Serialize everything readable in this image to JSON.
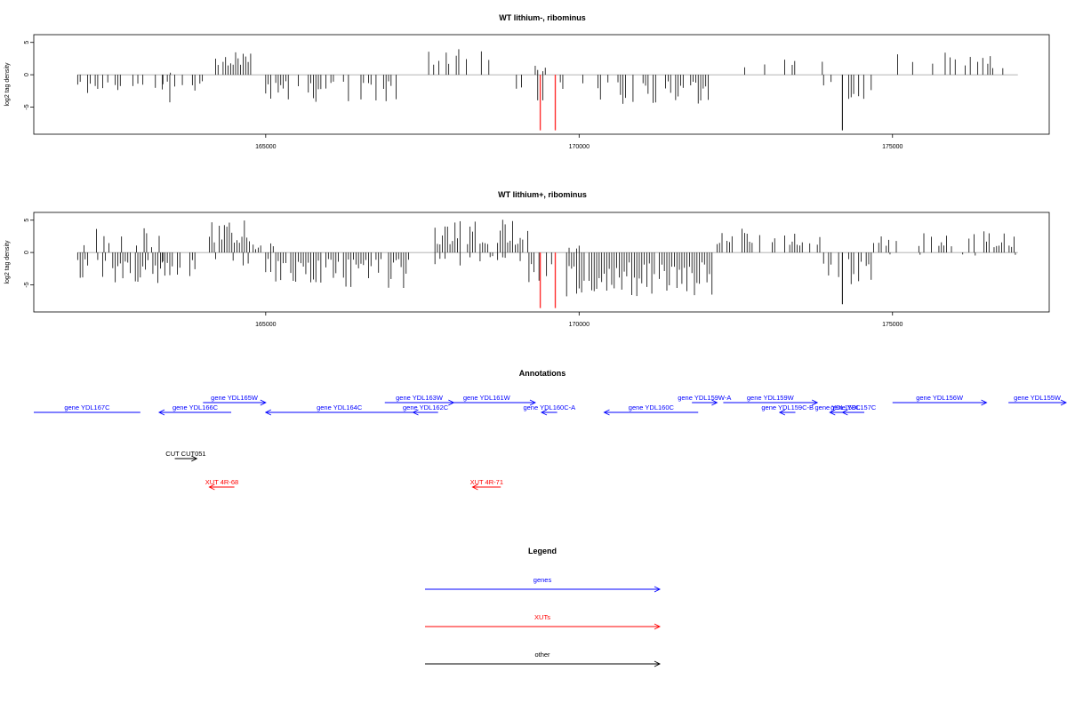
{
  "chart_data": [
    {
      "type": "bar",
      "title": "WT lithium-, ribominus",
      "xlabel": "",
      "ylabel": "log2 tag density",
      "xlim": [
        161300,
        177500
      ],
      "ylim": [
        -9.2,
        6.2
      ],
      "xticks": [
        165000,
        170000,
        175000
      ],
      "yticks": [
        5,
        0,
        -5
      ],
      "grid": false,
      "baseline_extent": [
        162000,
        177000
      ],
      "highlight_color": "#ff3030",
      "bar_color": "#000000",
      "highlights": [
        {
          "x": 169380,
          "y": -8.6
        },
        {
          "x": 169620,
          "y": -8.6
        }
      ],
      "segments": [
        {
          "start": 162000,
          "end": 163400,
          "sign": -1,
          "vmin": 1.0,
          "vmax": 3.8,
          "density": 0.55,
          "seed": 11
        },
        {
          "start": 163400,
          "end": 163500,
          "sign": 1,
          "vmin": 0.3,
          "vmax": 0.6,
          "density": 0.1,
          "seed": 12
        },
        {
          "start": 163350,
          "end": 164000,
          "sign": -1,
          "vmin": 1.0,
          "vmax": 4.5,
          "density": 0.55,
          "seed": 13
        },
        {
          "start": 164200,
          "end": 164800,
          "sign": 1,
          "vmin": 1.2,
          "vmax": 4.0,
          "density": 0.55,
          "seed": 14
        },
        {
          "start": 165000,
          "end": 167100,
          "sign": -1,
          "vmin": 1.0,
          "vmax": 4.4,
          "density": 0.55,
          "seed": 15
        },
        {
          "start": 167600,
          "end": 169000,
          "sign": 1,
          "vmin": 1.5,
          "vmax": 4.6,
          "density": 0.3,
          "seed": 16
        },
        {
          "start": 169000,
          "end": 169200,
          "sign": -1,
          "vmin": 1.0,
          "vmax": 2.5,
          "density": 0.3,
          "seed": 17
        },
        {
          "start": 169300,
          "end": 169500,
          "sign": 1,
          "vmin": 0.5,
          "vmax": 1.5,
          "density": 0.3,
          "seed": 18
        },
        {
          "start": 169300,
          "end": 169500,
          "sign": -1,
          "vmin": 2.0,
          "vmax": 4.5,
          "density": 0.2,
          "seed": 19
        },
        {
          "start": 169700,
          "end": 172100,
          "sign": -1,
          "vmin": 1.0,
          "vmax": 4.8,
          "density": 0.55,
          "seed": 20
        },
        {
          "start": 172200,
          "end": 173900,
          "sign": 1,
          "vmin": 1.0,
          "vmax": 3.2,
          "density": 0.12,
          "seed": 21
        },
        {
          "start": 173900,
          "end": 174700,
          "sign": -1,
          "vmin": 1.0,
          "vmax": 4.5,
          "density": 0.45,
          "seed": 22
        },
        {
          "start": 174600,
          "end": 177000,
          "sign": 1,
          "vmin": 1.0,
          "vmax": 4.0,
          "density": 0.15,
          "seed": 23
        }
      ],
      "spikes": [
        {
          "x": 174200,
          "y": -8.6
        }
      ]
    },
    {
      "type": "bar",
      "title": "WT lithium+, ribominus",
      "xlabel": "",
      "ylabel": "log2 tag density",
      "xlim": [
        161300,
        177500
      ],
      "ylim": [
        -9.2,
        6.2
      ],
      "xticks": [
        165000,
        170000,
        175000
      ],
      "yticks": [
        5,
        0,
        -5
      ],
      "grid": false,
      "baseline_extent": [
        162000,
        177000
      ],
      "highlight_color": "#ff3030",
      "bar_color": "#000000",
      "highlights": [
        {
          "x": 169380,
          "y": -8.6
        },
        {
          "x": 169620,
          "y": -8.6
        }
      ],
      "segments": [
        {
          "start": 162000,
          "end": 163400,
          "sign": -1,
          "vmin": 1.0,
          "vmax": 4.8,
          "density": 0.75,
          "seed": 31
        },
        {
          "start": 162100,
          "end": 163400,
          "sign": 1,
          "vmin": 0.8,
          "vmax": 3.8,
          "density": 0.35,
          "seed": 32
        },
        {
          "start": 163350,
          "end": 164000,
          "sign": -1,
          "vmin": 1.0,
          "vmax": 4.0,
          "density": 0.75,
          "seed": 33
        },
        {
          "start": 164100,
          "end": 164800,
          "sign": 1,
          "vmin": 1.5,
          "vmax": 5.0,
          "density": 0.9,
          "seed": 34
        },
        {
          "start": 164200,
          "end": 164800,
          "sign": -1,
          "vmin": 0.5,
          "vmax": 2.0,
          "density": 0.35,
          "seed": 35
        },
        {
          "start": 165000,
          "end": 167300,
          "sign": -1,
          "vmin": 1.0,
          "vmax": 5.5,
          "density": 0.8,
          "seed": 36
        },
        {
          "start": 164800,
          "end": 165200,
          "sign": 1,
          "vmin": 0.5,
          "vmax": 1.8,
          "density": 0.3,
          "seed": 37
        },
        {
          "start": 167700,
          "end": 169200,
          "sign": 1,
          "vmin": 1.2,
          "vmax": 5.2,
          "density": 0.85,
          "seed": 38
        },
        {
          "start": 167700,
          "end": 169200,
          "sign": -1,
          "vmin": 0.5,
          "vmax": 2.2,
          "density": 0.3,
          "seed": 39
        },
        {
          "start": 169200,
          "end": 169600,
          "sign": -1,
          "vmin": 1.5,
          "vmax": 5.0,
          "density": 0.5,
          "seed": 40
        },
        {
          "start": 169800,
          "end": 172200,
          "sign": -1,
          "vmin": 1.5,
          "vmax": 6.8,
          "density": 0.95,
          "seed": 41
        },
        {
          "start": 169800,
          "end": 170200,
          "sign": 1,
          "vmin": 0.3,
          "vmax": 1.2,
          "density": 0.2,
          "seed": 42
        },
        {
          "start": 172200,
          "end": 173900,
          "sign": 1,
          "vmin": 1.0,
          "vmax": 3.8,
          "density": 0.45,
          "seed": 43
        },
        {
          "start": 173900,
          "end": 174700,
          "sign": -1,
          "vmin": 1.0,
          "vmax": 5.0,
          "density": 0.55,
          "seed": 44
        },
        {
          "start": 174700,
          "end": 177000,
          "sign": 1,
          "vmin": 0.8,
          "vmax": 3.3,
          "density": 0.45,
          "seed": 45
        },
        {
          "start": 174800,
          "end": 177000,
          "sign": -1,
          "vmin": 0.3,
          "vmax": 1.0,
          "density": 0.1,
          "seed": 46
        }
      ],
      "spikes": [
        {
          "x": 174200,
          "y": -8.0
        }
      ]
    }
  ],
  "annotations": {
    "title": "Annotations",
    "colors": {
      "genes": "#0000ff",
      "xuts": "#ff0000",
      "other": "#000000"
    },
    "features": [
      {
        "label": "gene YDL167C",
        "start": 161300,
        "end": 163000,
        "dir": "none",
        "row": 1,
        "kind": "genes"
      },
      {
        "label": "gene YDL166C",
        "start": 163300,
        "end": 164450,
        "dir": "left",
        "row": 1,
        "kind": "genes"
      },
      {
        "label": "gene YDL165W",
        "start": 164000,
        "end": 165000,
        "dir": "right",
        "row": 0,
        "kind": "genes"
      },
      {
        "label": "gene YDL164C",
        "start": 165000,
        "end": 167350,
        "dir": "left",
        "row": 1,
        "kind": "genes"
      },
      {
        "label": "gene YDL163W",
        "start": 166900,
        "end": 168000,
        "dir": "right",
        "row": 0,
        "kind": "genes"
      },
      {
        "label": "gene YDL162C",
        "start": 167350,
        "end": 167750,
        "dir": "left",
        "row": 1,
        "kind": "genes"
      },
      {
        "label": "gene YDL161W",
        "start": 167750,
        "end": 169300,
        "dir": "right",
        "row": 0,
        "kind": "genes"
      },
      {
        "label": "gene YDL160C-A",
        "start": 169400,
        "end": 169650,
        "dir": "left",
        "row": 1,
        "kind": "genes"
      },
      {
        "label": "gene YDL160C",
        "start": 170400,
        "end": 171900,
        "dir": "left",
        "row": 1,
        "kind": "genes"
      },
      {
        "label": "gene YDL159W-A",
        "start": 171800,
        "end": 172200,
        "dir": "right",
        "row": 0,
        "kind": "genes"
      },
      {
        "label": "gene YDL159W",
        "start": 172300,
        "end": 173800,
        "dir": "right",
        "row": 0,
        "kind": "genes"
      },
      {
        "label": "gene YDL159C-B",
        "start": 173200,
        "end": 173450,
        "dir": "left",
        "row": 1,
        "kind": "genes"
      },
      {
        "label": "gene YDL158C",
        "start": 174000,
        "end": 174250,
        "dir": "left",
        "row": 1,
        "kind": "genes"
      },
      {
        "label": "gene YDL157C",
        "start": 174200,
        "end": 174550,
        "dir": "left",
        "row": 1,
        "kind": "genes"
      },
      {
        "label": "gene YDL156W",
        "start": 175000,
        "end": 176500,
        "dir": "right",
        "row": 0,
        "kind": "genes"
      },
      {
        "label": "gene YDL155W",
        "start": 176850,
        "end": 177800,
        "dir": "right",
        "row": 0,
        "kind": "genes"
      },
      {
        "label": "CUT CUT051",
        "start": 163550,
        "end": 163900,
        "dir": "right",
        "row": 2,
        "kind": "other"
      },
      {
        "label": "XUT 4R-68",
        "start": 164100,
        "end": 164500,
        "dir": "left",
        "row": 3,
        "kind": "xuts"
      },
      {
        "label": "XUT 4R-71",
        "start": 168300,
        "end": 168750,
        "dir": "left",
        "row": 3,
        "kind": "xuts"
      }
    ]
  },
  "legend": {
    "title": "Legend",
    "items": [
      {
        "label": "genes",
        "color": "#0000ff"
      },
      {
        "label": "XUTs",
        "color": "#ff0000"
      },
      {
        "label": "other",
        "color": "#000000"
      }
    ]
  }
}
